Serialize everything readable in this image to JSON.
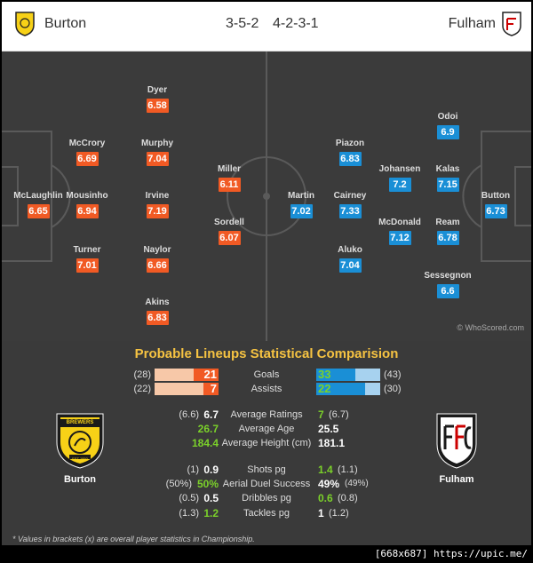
{
  "header": {
    "home_team": "Burton",
    "away_team": "Fulham",
    "home_formation": "3-5-2",
    "away_formation": "4-2-3-1"
  },
  "colors": {
    "home": "#f15a24",
    "away": "#1a8fd6",
    "title": "#f6c342",
    "good": "#7bd12a"
  },
  "pitch": {
    "watermark": "© WhoScored.com",
    "home_players": [
      {
        "name": "McLaughlin",
        "rating": "6.65"
      },
      {
        "name": "McCrory",
        "rating": "6.69"
      },
      {
        "name": "Mousinho",
        "rating": "6.94"
      },
      {
        "name": "Turner",
        "rating": "7.01"
      },
      {
        "name": "Dyer",
        "rating": "6.58"
      },
      {
        "name": "Murphy",
        "rating": "7.04"
      },
      {
        "name": "Irvine",
        "rating": "7.19"
      },
      {
        "name": "Naylor",
        "rating": "6.66"
      },
      {
        "name": "Akins",
        "rating": "6.83"
      },
      {
        "name": "Miller",
        "rating": "6.11"
      },
      {
        "name": "Sordell",
        "rating": "6.07"
      }
    ],
    "away_players": [
      {
        "name": "Martin",
        "rating": "7.02"
      },
      {
        "name": "Piazon",
        "rating": "6.83"
      },
      {
        "name": "Cairney",
        "rating": "7.33"
      },
      {
        "name": "Aluko",
        "rating": "7.04"
      },
      {
        "name": "Johansen",
        "rating": "7.2"
      },
      {
        "name": "McDonald",
        "rating": "7.12"
      },
      {
        "name": "Odoi",
        "rating": "6.9"
      },
      {
        "name": "Kalas",
        "rating": "7.15"
      },
      {
        "name": "Ream",
        "rating": "6.78"
      },
      {
        "name": "Sessegnon",
        "rating": "6.6"
      },
      {
        "name": "Button",
        "rating": "6.73"
      }
    ]
  },
  "stats": {
    "title": "Probable Lineups Statistical Comparision",
    "goals": {
      "label": "Goals",
      "home": "21",
      "home_bracket": "(28)",
      "away": "33",
      "away_bracket": "(43)",
      "home_fill": 0.39,
      "away_fill": 0.61
    },
    "assists": {
      "label": "Assists",
      "home": "7",
      "home_bracket": "(22)",
      "away": "22",
      "away_bracket": "(30)",
      "home_fill": 0.24,
      "away_fill": 0.76
    },
    "rows": [
      {
        "label": "Average Ratings",
        "home_bracket": "(6.6)",
        "home": "6.7",
        "away": "7",
        "away_bracket": "(6.7)",
        "home_color": "w",
        "away_color": "g"
      },
      {
        "label": "Average Age",
        "home_bracket": "",
        "home": "26.7",
        "away": "25.5",
        "away_bracket": "",
        "home_color": "g",
        "away_color": "w"
      },
      {
        "label": "Average Height (cm)",
        "home_bracket": "",
        "home": "184.4",
        "away": "181.1",
        "away_bracket": "",
        "home_color": "g",
        "away_color": "w"
      },
      {
        "label": "Shots pg",
        "home_bracket": "(1)",
        "home": "0.9",
        "away": "1.4",
        "away_bracket": "(1.1)",
        "home_color": "w",
        "away_color": "g"
      },
      {
        "label": "Aerial Duel Success",
        "home_bracket": "(50%)",
        "home": "50%",
        "away": "49%",
        "away_bracket": "(49%)",
        "home_color": "g",
        "away_color": "w"
      },
      {
        "label": "Dribbles pg",
        "home_bracket": "(0.5)",
        "home": "0.5",
        "away": "0.6",
        "away_bracket": "(0.8)",
        "home_color": "w",
        "away_color": "g"
      },
      {
        "label": "Tackles pg",
        "home_bracket": "(1.3)",
        "home": "1.2",
        "away": "1",
        "away_bracket": "(1.2)",
        "home_color": "g",
        "away_color": "w"
      }
    ],
    "home_badge_text": "BREWERS",
    "home_badge_year": "EST 1950",
    "home_badge_label": "Burton",
    "away_badge_label": "Fulham",
    "footnote": "* Values in brackets (x) are overall player statistics in Championship."
  },
  "strip": {
    "text": "[668x687] https://upic.me/"
  }
}
